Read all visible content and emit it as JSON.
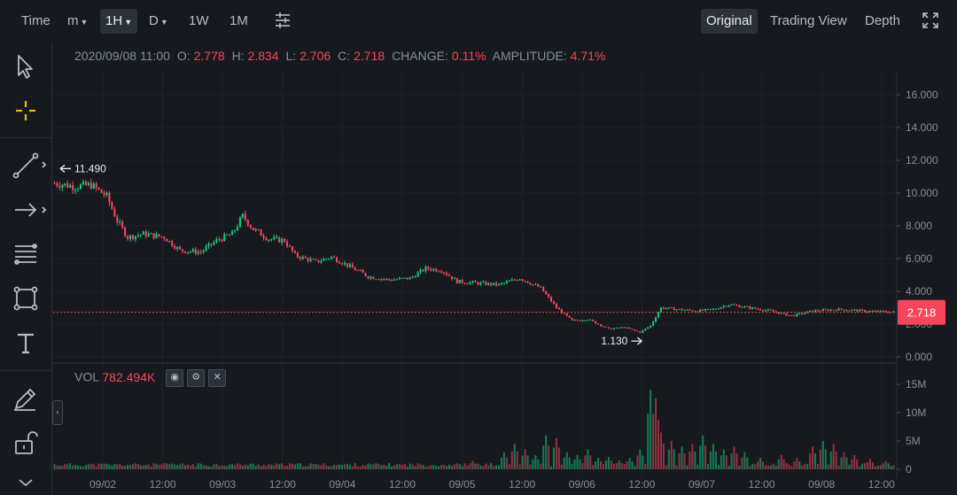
{
  "toolbar": {
    "intervals": [
      {
        "label": "Time"
      },
      {
        "label": "m",
        "dropdown": true
      },
      {
        "label": "1H",
        "dropdown": true,
        "active": true
      },
      {
        "label": "D",
        "dropdown": true
      },
      {
        "label": "1W"
      },
      {
        "label": "1M"
      }
    ],
    "views": [
      {
        "label": "Original",
        "active": true
      },
      {
        "label": "Trading View"
      },
      {
        "label": "Depth"
      }
    ],
    "settings_icon": "sliders-icon",
    "fullscreen_icon": "fullscreen-icon"
  },
  "tools": [
    "cursor-icon",
    "crosshair-icon",
    "trendline-icon",
    "arrow-icon",
    "fib-icon",
    "rectangle-icon",
    "text-icon",
    "pen-icon",
    "lock-icon"
  ],
  "info": {
    "datetime": "2020/09/08 11:00",
    "open_label": "O:",
    "open": "2.778",
    "high_label": "H:",
    "high": "2.834",
    "low_label": "L:",
    "low": "2.706",
    "close_label": "C:",
    "close": "2.718",
    "change_label": "CHANGE:",
    "change": "0.11%",
    "amplitude_label": "AMPLITUDE:",
    "amplitude": "4.71%"
  },
  "volume": {
    "label": "VOL",
    "value": "782.494K"
  },
  "colors": {
    "up": "#0ecb81",
    "down": "#f6465d",
    "background": "#161a1e",
    "grid": "#1f2329",
    "text": "#848e9c"
  },
  "chart_data": [
    {
      "type": "candlestick",
      "x_ticks": [
        "09/02",
        "12:00",
        "09/03",
        "12:00",
        "09/04",
        "12:00",
        "09/05",
        "12:00",
        "09/06",
        "12:00",
        "09/07",
        "12:00",
        "09/08",
        "12:00"
      ],
      "y_ticks": [
        "16.000",
        "14.000",
        "12.000",
        "10.000",
        "8.000",
        "6.000",
        "4.000",
        "2.000",
        "0.000"
      ],
      "ylim": [
        0,
        16
      ],
      "last_price": "2.718",
      "annotations": [
        {
          "text": "11.490",
          "kind": "high"
        },
        {
          "text": "1.130",
          "kind": "low"
        }
      ],
      "trend": [
        [
          0,
          10.6
        ],
        [
          8,
          10.4
        ],
        [
          14,
          10.5
        ],
        [
          20,
          9.8
        ],
        [
          24,
          8.3
        ],
        [
          28,
          7.3
        ],
        [
          34,
          7.5
        ],
        [
          42,
          7.3
        ],
        [
          48,
          6.5
        ],
        [
          56,
          6.4
        ],
        [
          62,
          7.1
        ],
        [
          68,
          7.5
        ],
        [
          72,
          8.6
        ],
        [
          76,
          7.8
        ],
        [
          82,
          7.2
        ],
        [
          88,
          7.1
        ],
        [
          92,
          6.2
        ],
        [
          100,
          5.8
        ],
        [
          106,
          6.1
        ],
        [
          112,
          5.6
        ],
        [
          120,
          4.9
        ],
        [
          128,
          4.7
        ],
        [
          136,
          4.8
        ],
        [
          142,
          5.4
        ],
        [
          148,
          5.3
        ],
        [
          154,
          4.6
        ],
        [
          162,
          4.5
        ],
        [
          170,
          4.4
        ],
        [
          178,
          4.8
        ],
        [
          186,
          4.2
        ],
        [
          192,
          3.0
        ],
        [
          198,
          2.2
        ],
        [
          204,
          2.3
        ],
        [
          212,
          1.7
        ],
        [
          218,
          1.8
        ],
        [
          224,
          1.5
        ],
        [
          228,
          1.9
        ],
        [
          232,
          3.0
        ],
        [
          238,
          2.9
        ],
        [
          246,
          2.8
        ],
        [
          252,
          2.9
        ],
        [
          258,
          3.2
        ],
        [
          266,
          3.0
        ],
        [
          274,
          2.8
        ],
        [
          282,
          2.5
        ],
        [
          290,
          2.8
        ],
        [
          300,
          2.9
        ],
        [
          310,
          2.8
        ],
        [
          322,
          2.73
        ]
      ],
      "candle_count": 322
    },
    {
      "type": "bar",
      "name": "VOL",
      "y_ticks": [
        "15M",
        "10M",
        "5M",
        "0"
      ],
      "ylim": [
        0,
        16
      ],
      "spikes": [
        [
          160,
          1.5
        ],
        [
          172,
          3.0
        ],
        [
          176,
          4.5
        ],
        [
          180,
          3.5
        ],
        [
          184,
          2.5
        ],
        [
          188,
          6.0
        ],
        [
          192,
          5.5
        ],
        [
          196,
          3.0
        ],
        [
          200,
          2.5
        ],
        [
          204,
          3.5
        ],
        [
          208,
          2.0
        ],
        [
          212,
          2.2
        ],
        [
          216,
          1.5
        ],
        [
          220,
          2.0
        ],
        [
          224,
          3.5
        ],
        [
          228,
          14.0
        ],
        [
          230,
          12.5
        ],
        [
          232,
          6.5
        ],
        [
          236,
          5.0
        ],
        [
          240,
          4.0
        ],
        [
          244,
          4.5
        ],
        [
          248,
          6.0
        ],
        [
          252,
          4.5
        ],
        [
          256,
          3.5
        ],
        [
          260,
          4.0
        ],
        [
          264,
          3.0
        ],
        [
          270,
          2.0
        ],
        [
          278,
          2.5
        ],
        [
          284,
          2.0
        ],
        [
          290,
          4.0
        ],
        [
          294,
          5.0
        ],
        [
          298,
          4.5
        ],
        [
          302,
          3.0
        ],
        [
          306,
          2.5
        ],
        [
          312,
          1.8
        ],
        [
          318,
          1.5
        ]
      ]
    }
  ]
}
